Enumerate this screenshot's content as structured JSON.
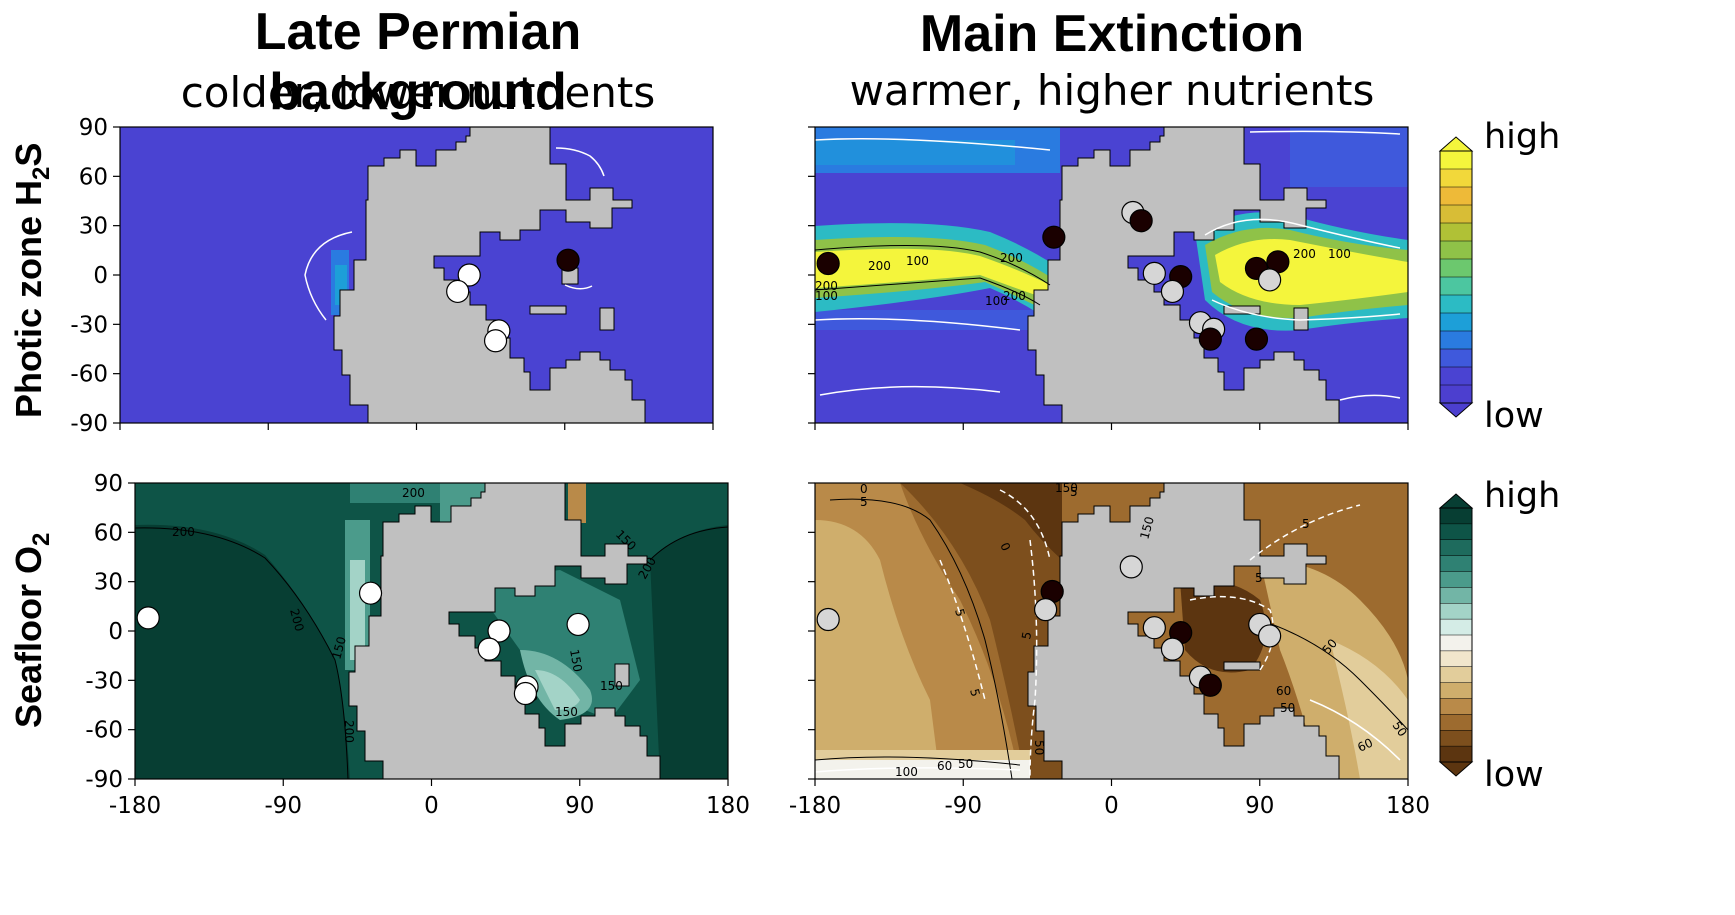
{
  "columns": [
    {
      "title": "Late Permian background",
      "subtitle": "colder, lower nutrients"
    },
    {
      "title": "Main Extinction",
      "subtitle": "warmer, higher nutrients"
    }
  ],
  "rows": [
    {
      "label_main": "Photic zone H",
      "label_sub": "2",
      "label_end": "S"
    },
    {
      "label_main": "Seafloor O",
      "label_sub": "2",
      "label_end": ""
    }
  ],
  "colorbars": [
    {
      "high": "high",
      "low": "low",
      "colors": [
        "#f4f53c",
        "#f2d83a",
        "#eeba38",
        "#d8bd36",
        "#b0c136",
        "#8fc248",
        "#6cc86e",
        "#4cc6a0",
        "#2cbbc4",
        "#1d9fd8",
        "#2a7be0",
        "#3f59dc",
        "#4a43d2",
        "#4c3fcf"
      ]
    },
    {
      "high": "high",
      "low": "low",
      "colors": [
        "#073e33",
        "#0e5447",
        "#1e6b5d",
        "#2f8173",
        "#4b9b8b",
        "#72b5a6",
        "#a3d3c7",
        "#d4ece6",
        "#f3f2ec",
        "#f1e6cc",
        "#e2cd9b",
        "#cfae6c",
        "#b98a49",
        "#9d6b2f",
        "#7d4f1d",
        "#5c3510"
      ]
    }
  ],
  "chart_data": [
    {
      "type": "heatmap",
      "panel": "Photic zone H2S - Late Permian background",
      "x_ticks": [
        -180,
        -90,
        0,
        90,
        180
      ],
      "y_ticks": [
        90,
        60,
        30,
        0,
        -30,
        -60,
        -90
      ],
      "xlim": [
        -180,
        180
      ],
      "ylim": [
        -90,
        90
      ],
      "field_level": "low",
      "site_markers": [
        {
          "lon": 32,
          "lat": 0,
          "fill": "white"
        },
        {
          "lon": 25,
          "lat": -10,
          "fill": "white"
        },
        {
          "lon": 50,
          "lat": -34,
          "fill": "white"
        },
        {
          "lon": 48,
          "lat": -40,
          "fill": "white"
        },
        {
          "lon": 92,
          "lat": 9,
          "fill": "dark"
        }
      ]
    },
    {
      "type": "heatmap",
      "panel": "Photic zone H2S - Main Extinction",
      "x_ticks": [
        -180,
        -90,
        0,
        90,
        180
      ],
      "y_ticks": [
        90,
        60,
        30,
        0,
        -30,
        -60,
        -90
      ],
      "xlim": [
        -180,
        180
      ],
      "ylim": [
        -90,
        90
      ],
      "contour_labels": [
        "200",
        "100",
        "200",
        "100",
        "200",
        "200",
        "100",
        "200",
        "100"
      ],
      "site_markers": [
        {
          "lon": -172,
          "lat": 7,
          "fill": "dark"
        },
        {
          "lon": -35,
          "lat": 23,
          "fill": "dark"
        },
        {
          "lon": 13,
          "lat": 38,
          "fill": "light"
        },
        {
          "lon": 18,
          "lat": 33,
          "fill": "dark"
        },
        {
          "lon": 26,
          "lat": 1,
          "fill": "light"
        },
        {
          "lon": 42,
          "lat": -1,
          "fill": "dark"
        },
        {
          "lon": 37,
          "lat": -10,
          "fill": "light"
        },
        {
          "lon": 54,
          "lat": -29,
          "fill": "light"
        },
        {
          "lon": 62,
          "lat": -33,
          "fill": "light"
        },
        {
          "lon": 60,
          "lat": -39,
          "fill": "dark"
        },
        {
          "lon": 88,
          "lat": -39,
          "fill": "dark"
        },
        {
          "lon": 88,
          "lat": 4,
          "fill": "dark"
        },
        {
          "lon": 101,
          "lat": 8,
          "fill": "dark"
        },
        {
          "lon": 96,
          "lat": -3,
          "fill": "light"
        }
      ]
    },
    {
      "type": "heatmap",
      "panel": "Seafloor O2 - Late Permian background",
      "x_ticks": [
        -180,
        -90,
        0,
        90,
        180
      ],
      "y_ticks": [
        90,
        60,
        30,
        0,
        -30,
        -60,
        -90
      ],
      "xlim": [
        -180,
        180
      ],
      "ylim": [
        -90,
        90
      ],
      "contour_labels": [
        "200",
        "200",
        "200",
        "150",
        "200",
        "150",
        "150",
        "150",
        "200",
        "150",
        "150"
      ],
      "site_markers": [
        {
          "lon": -172,
          "lat": 8,
          "fill": "white"
        },
        {
          "lon": -37,
          "lat": 23,
          "fill": "white"
        },
        {
          "lon": 41,
          "lat": 0,
          "fill": "white"
        },
        {
          "lon": 35,
          "lat": -11,
          "fill": "white"
        },
        {
          "lon": 89,
          "lat": 4,
          "fill": "white"
        },
        {
          "lon": 58,
          "lat": -34,
          "fill": "white"
        },
        {
          "lon": 57,
          "lat": -38,
          "fill": "white"
        }
      ]
    },
    {
      "type": "heatmap",
      "panel": "Seafloor O2 - Main Extinction",
      "x_ticks": [
        -180,
        -90,
        0,
        90,
        180
      ],
      "y_ticks": [
        90,
        60,
        30,
        0,
        -30,
        -60,
        -90
      ],
      "xlim": [
        -180,
        180
      ],
      "ylim": [
        -90,
        90
      ],
      "contour_labels": [
        "0",
        "5",
        "150",
        "5",
        "0",
        "5",
        "5",
        "50",
        "5",
        "150",
        "5",
        "5",
        "50",
        "60",
        "100",
        "60",
        "50",
        "50",
        "60",
        "50"
      ],
      "site_markers": [
        {
          "lon": -172,
          "lat": 7,
          "fill": "light"
        },
        {
          "lon": -36,
          "lat": 24,
          "fill": "dark"
        },
        {
          "lon": -40,
          "lat": 13,
          "fill": "light"
        },
        {
          "lon": 12,
          "lat": 39,
          "fill": "light"
        },
        {
          "lon": 26,
          "lat": 2,
          "fill": "light"
        },
        {
          "lon": 42,
          "lat": -1,
          "fill": "dark"
        },
        {
          "lon": 37,
          "lat": -11,
          "fill": "light"
        },
        {
          "lon": 54,
          "lat": -28,
          "fill": "light"
        },
        {
          "lon": 60,
          "lat": -33,
          "fill": "dark"
        },
        {
          "lon": 90,
          "lat": 4,
          "fill": "light"
        },
        {
          "lon": 96,
          "lat": -3,
          "fill": "light"
        }
      ]
    }
  ]
}
